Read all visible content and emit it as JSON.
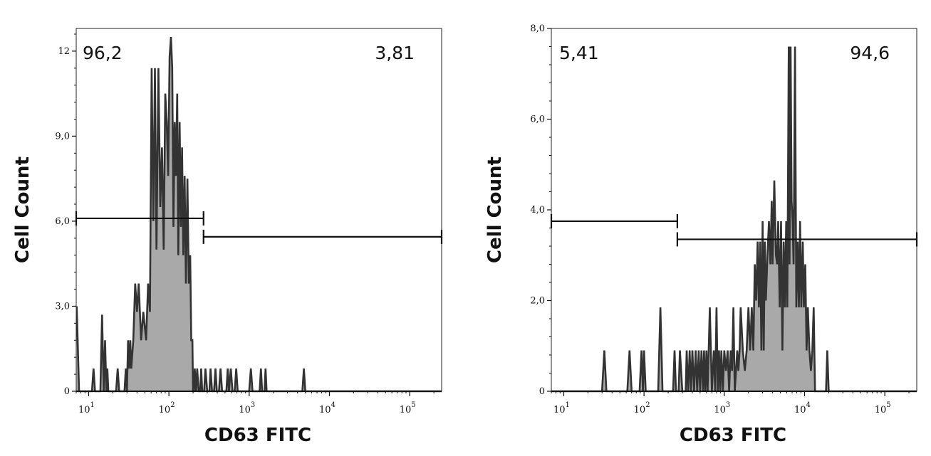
{
  "chart_data": [
    {
      "type": "area",
      "title": "",
      "xlabel": "CD63 FITC",
      "ylabel": "Cell Count",
      "x_scale": "log",
      "xlim": [
        7,
        250000
      ],
      "ylim": [
        0,
        12.8
      ],
      "x_ticks": [
        {
          "value": 10,
          "base": "10",
          "exp": "1"
        },
        {
          "value": 100,
          "base": "10",
          "exp": "2"
        },
        {
          "value": 1000,
          "base": "10",
          "exp": "3"
        },
        {
          "value": 10000,
          "base": "10",
          "exp": "4"
        },
        {
          "value": 100000,
          "base": "10",
          "exp": "5"
        }
      ],
      "y_ticks": [
        {
          "value": 0,
          "label": "0"
        },
        {
          "value": 3,
          "label": "3,0"
        },
        {
          "value": 6,
          "label": "6,0"
        },
        {
          "value": 9,
          "label": "9,0"
        },
        {
          "value": 12,
          "label": "12"
        }
      ],
      "grid": false,
      "series": [
        {
          "fill": "#a9a9a9",
          "line": "#333333",
          "points": [
            [
              7.1,
              3.0
            ],
            [
              7.6,
              0
            ],
            [
              11,
              0
            ],
            [
              11.5,
              0.8
            ],
            [
              12,
              0
            ],
            [
              14,
              0
            ],
            [
              14.7,
              2.7
            ],
            [
              15.4,
              0
            ],
            [
              16,
              1.8
            ],
            [
              16.6,
              0
            ],
            [
              17.1,
              0.8
            ],
            [
              17.6,
              0
            ],
            [
              22,
              0
            ],
            [
              23,
              0.8
            ],
            [
              24,
              0
            ],
            [
              28,
              0
            ],
            [
              29,
              0.8
            ],
            [
              30,
              0
            ],
            [
              31,
              1.8
            ],
            [
              32,
              0.8
            ],
            [
              33,
              1.8
            ],
            [
              34,
              0.8
            ],
            [
              36,
              1.8
            ],
            [
              38,
              3.8
            ],
            [
              40,
              2.8
            ],
            [
              42,
              3.8
            ],
            [
              45,
              1.8
            ],
            [
              48,
              2.8
            ],
            [
              52,
              1.8
            ],
            [
              55,
              3.8
            ],
            [
              58,
              2.8
            ],
            [
              61,
              11.4
            ],
            [
              64,
              6.0
            ],
            [
              67,
              11.4
            ],
            [
              70,
              5.0
            ],
            [
              74,
              11.4
            ],
            [
              78,
              6.5
            ],
            [
              82,
              8.6
            ],
            [
              86,
              5.0
            ],
            [
              90,
              10.5
            ],
            [
              94,
              9.5
            ],
            [
              98,
              7.6
            ],
            [
              102,
              11.8
            ],
            [
              106,
              12.5
            ],
            [
              110,
              11.4
            ],
            [
              114,
              5.8
            ],
            [
              118,
              9.5
            ],
            [
              122,
              7.6
            ],
            [
              127,
              10.5
            ],
            [
              131,
              4.8
            ],
            [
              136,
              9.5
            ],
            [
              141,
              5.8
            ],
            [
              146,
              8.6
            ],
            [
              151,
              4.8
            ],
            [
              157,
              7.6
            ],
            [
              163,
              3.8
            ],
            [
              170,
              7.5
            ],
            [
              177,
              3.8
            ],
            [
              184,
              4.8
            ],
            [
              190,
              1.8
            ],
            [
              196,
              1.8
            ],
            [
              200,
              0
            ],
            [
              205,
              0
            ],
            [
              210,
              0.8
            ],
            [
              218,
              0
            ],
            [
              225,
              0.8
            ],
            [
              235,
              0
            ],
            [
              245,
              0
            ],
            [
              252,
              0.8
            ],
            [
              260,
              0
            ],
            [
              275,
              0
            ],
            [
              285,
              0.8
            ],
            [
              300,
              0
            ],
            [
              320,
              0
            ],
            [
              330,
              0.8
            ],
            [
              345,
              0
            ],
            [
              365,
              0
            ],
            [
              380,
              0.8
            ],
            [
              395,
              0
            ],
            [
              420,
              0
            ],
            [
              440,
              0.8
            ],
            [
              460,
              0
            ],
            [
              520,
              0
            ],
            [
              540,
              0.8
            ],
            [
              560,
              0
            ],
            [
              590,
              0.8
            ],
            [
              620,
              0
            ],
            [
              660,
              0
            ],
            [
              690,
              0.8
            ],
            [
              720,
              0
            ],
            [
              1000,
              0
            ],
            [
              1050,
              0.8
            ],
            [
              1100,
              0
            ],
            [
              1350,
              0
            ],
            [
              1400,
              0.8
            ],
            [
              1450,
              0
            ],
            [
              1550,
              0
            ],
            [
              1600,
              0.8
            ],
            [
              1650,
              0
            ],
            [
              4600,
              0
            ],
            [
              4800,
              0.8
            ],
            [
              5000,
              0
            ],
            [
              250000,
              0
            ]
          ]
        }
      ],
      "gates": [
        {
          "percent": "96,2",
          "from": 7,
          "to": 270,
          "y": 6.1
        },
        {
          "percent": "3,81",
          "from": 270,
          "to": 250000,
          "y": 5.45
        }
      ]
    },
    {
      "type": "area",
      "title": "",
      "xlabel": "CD63 FITC",
      "ylabel": "Cell Count",
      "x_scale": "log",
      "xlim": [
        7,
        250000
      ],
      "ylim": [
        0,
        8.0
      ],
      "x_ticks": [
        {
          "value": 10,
          "base": "10",
          "exp": "1"
        },
        {
          "value": 100,
          "base": "10",
          "exp": "2"
        },
        {
          "value": 1000,
          "base": "10",
          "exp": "3"
        },
        {
          "value": 10000,
          "base": "10",
          "exp": "4"
        },
        {
          "value": 100000,
          "base": "10",
          "exp": "5"
        }
      ],
      "y_ticks": [
        {
          "value": 0,
          "label": "0"
        },
        {
          "value": 2,
          "label": "2,0"
        },
        {
          "value": 4,
          "label": "4,0"
        },
        {
          "value": 6,
          "label": "6,0"
        },
        {
          "value": 8,
          "label": "8,0"
        }
      ],
      "grid": false,
      "series": [
        {
          "fill": "#a9a9a9",
          "line": "#333333",
          "points": [
            [
              7,
              0
            ],
            [
              30,
              0
            ],
            [
              32,
              0.9
            ],
            [
              34,
              0
            ],
            [
              62,
              0
            ],
            [
              66,
              0.9
            ],
            [
              70,
              0
            ],
            [
              88,
              0
            ],
            [
              93,
              0.9
            ],
            [
              97,
              0
            ],
            [
              100,
              0.9
            ],
            [
              105,
              0
            ],
            [
              150,
              0
            ],
            [
              160,
              1.85
            ],
            [
              170,
              0
            ],
            [
              230,
              0
            ],
            [
              240,
              0.9
            ],
            [
              250,
              0
            ],
            [
              270,
              0
            ],
            [
              280,
              0.9
            ],
            [
              300,
              0
            ],
            [
              330,
              0
            ],
            [
              340,
              0.9
            ],
            [
              355,
              0
            ],
            [
              370,
              0.9
            ],
            [
              385,
              0
            ],
            [
              400,
              0.9
            ],
            [
              420,
              0
            ],
            [
              440,
              0.9
            ],
            [
              460,
              0
            ],
            [
              480,
              0.9
            ],
            [
              500,
              0
            ],
            [
              520,
              0.9
            ],
            [
              545,
              0
            ],
            [
              560,
              0.9
            ],
            [
              580,
              0
            ],
            [
              600,
              0.9
            ],
            [
              620,
              0
            ],
            [
              660,
              1.85
            ],
            [
              700,
              0
            ],
            [
              740,
              0.9
            ],
            [
              770,
              0
            ],
            [
              800,
              1.85
            ],
            [
              830,
              0
            ],
            [
              860,
              0.9
            ],
            [
              890,
              0
            ],
            [
              920,
              0.9
            ],
            [
              960,
              0
            ],
            [
              1000,
              0.9
            ],
            [
              1050,
              0.45
            ],
            [
              1100,
              0.9
            ],
            [
              1150,
              0
            ],
            [
              1200,
              0.9
            ],
            [
              1250,
              0.45
            ],
            [
              1300,
              1.85
            ],
            [
              1350,
              0
            ],
            [
              1450,
              0.9
            ],
            [
              1500,
              0.45
            ],
            [
              1550,
              0.9
            ],
            [
              1600,
              1.85
            ],
            [
              1700,
              0.9
            ],
            [
              1800,
              0.45
            ],
            [
              1900,
              0.9
            ],
            [
              2000,
              1.85
            ],
            [
              2100,
              0.9
            ],
            [
              2200,
              1.85
            ],
            [
              2300,
              0.9
            ],
            [
              2400,
              2.8
            ],
            [
              2500,
              2.0
            ],
            [
              2600,
              3.3
            ],
            [
              2700,
              1.85
            ],
            [
              2800,
              3.3
            ],
            [
              2900,
              0.9
            ],
            [
              3000,
              3.75
            ],
            [
              3100,
              0.9
            ],
            [
              3200,
              3.3
            ],
            [
              3300,
              2.0
            ],
            [
              3450,
              3.0
            ],
            [
              3600,
              3.75
            ],
            [
              3750,
              2.8
            ],
            [
              3900,
              4.2
            ],
            [
              4000,
              2.8
            ],
            [
              4200,
              4.65
            ],
            [
              4400,
              3.0
            ],
            [
              4550,
              2.8
            ],
            [
              4700,
              3.75
            ],
            [
              4900,
              1.85
            ],
            [
              5100,
              3.75
            ],
            [
              5300,
              0.9
            ],
            [
              5500,
              3.3
            ],
            [
              5700,
              1.85
            ],
            [
              5900,
              3.75
            ],
            [
              6100,
              1.85
            ],
            [
              6350,
              7.6
            ],
            [
              6500,
              2.8
            ],
            [
              6700,
              7.6
            ],
            [
              6900,
              4.2
            ],
            [
              7100,
              3.75
            ],
            [
              7300,
              2.8
            ],
            [
              7600,
              7.6
            ],
            [
              7900,
              1.85
            ],
            [
              8200,
              3.3
            ],
            [
              8500,
              1.85
            ],
            [
              8800,
              3.75
            ],
            [
              9100,
              1.85
            ],
            [
              9500,
              3.3
            ],
            [
              9800,
              1.85
            ],
            [
              10200,
              2.8
            ],
            [
              10600,
              0.9
            ],
            [
              11000,
              1.85
            ],
            [
              11500,
              0.9
            ],
            [
              12000,
              0.45
            ],
            [
              12500,
              0.9
            ],
            [
              13000,
              1.85
            ],
            [
              13500,
              0
            ],
            [
              18500,
              0
            ],
            [
              19200,
              0.9
            ],
            [
              20000,
              0
            ],
            [
              250000,
              0
            ]
          ]
        }
      ],
      "gates": [
        {
          "percent": "5,41",
          "from": 7,
          "to": 260,
          "y": 3.75
        },
        {
          "percent": "94,6",
          "from": 260,
          "to": 250000,
          "y": 3.35
        }
      ]
    }
  ]
}
